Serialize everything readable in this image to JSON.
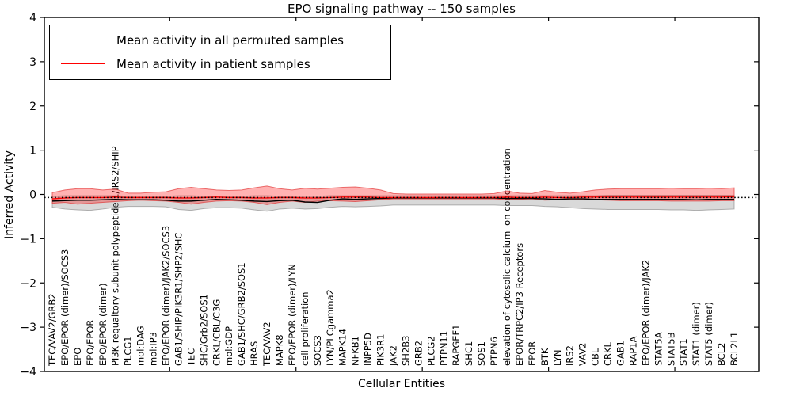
{
  "figure": {
    "background": "#ffffff"
  },
  "legend": {
    "position": "upper left",
    "items": [
      {
        "label": "Mean activity in all permuted samples",
        "color": "#000000"
      },
      {
        "label": "Mean activity in patient samples",
        "color": "#ff0000"
      }
    ]
  },
  "chart_data": {
    "type": "line",
    "title": "EPO signaling pathway -- 150 samples",
    "xlabel": "Cellular Entities",
    "ylabel": "Inferred Activity",
    "ylim": [
      -4,
      4
    ],
    "y_tick_labels": [
      "4",
      "3",
      "2",
      "1",
      "0",
      "−1",
      "−2",
      "−3",
      "−4"
    ],
    "y_tick_values": [
      4,
      3,
      2,
      1,
      0,
      -1,
      -2,
      -3,
      -4
    ],
    "grid": false,
    "legend_position": "upper left",
    "x_tick_label_rotation": 90,
    "dotted_reference_y": -0.07,
    "reference_line_color": "#000000",
    "categories": [
      "TEC/VAV2/GRB2",
      "EPO/EPOR (dimer)/SOCS3",
      "EPO",
      "EPO/EPOR",
      "EPO/EPOR (dimer)",
      "PI3K regualtory subunit polypeptide 1/IRS2/SHIP",
      "PLCG1",
      "mol:DAG",
      "mol:IP3",
      "EPO/EPOR (dimer)/JAK2/SOCS3",
      "GAB1/SHIP/PIK3R1/SHP2/SHC",
      "TEC",
      "SHC/Grb2/SOS1",
      "CRKL/CBL/C3G",
      "mol:GDP",
      "GAB1/SHC/GRB2/SOS1",
      "HRAS",
      "TEC/VAV2",
      "MAPK8",
      "EPO/EPOR (dimer)/LYN",
      "cell proliferation",
      "SOCS3",
      "LYN/PLCgamma2",
      "MAPK14",
      "NFKB1",
      "INPP5D",
      "PIK3R1",
      "JAK2",
      "SH2B3",
      "GRB2",
      "PLCG2",
      "PTPN11",
      "RAPGEF1",
      "SHC1",
      "SOS1",
      "PTPN6",
      "elevation of cytosolic calcium ion concentration",
      "EPOR/TRPC2/IP3 Receptors",
      "EPOR",
      "BTK",
      "LYN",
      "IRS2",
      "VAV2",
      "CBL",
      "CRKL",
      "GAB1",
      "RAP1A",
      "EPO/EPOR (dimer)/JAK2",
      "STAT5A",
      "STAT5B",
      "STAT1",
      "STAT1 (dimer)",
      "STAT5 (dimer)",
      "BCL2",
      "BCL2L1"
    ],
    "series": [
      {
        "name": "Mean activity in all permuted samples",
        "color": "#000000",
        "band_fill": "rgba(120,120,120,0.28)",
        "band_edge": "rgba(120,120,120,0.55)",
        "values": [
          -0.15,
          -0.14,
          -0.13,
          -0.13,
          -0.12,
          -0.11,
          -0.12,
          -0.12,
          -0.12,
          -0.13,
          -0.15,
          -0.15,
          -0.13,
          -0.11,
          -0.12,
          -0.13,
          -0.15,
          -0.16,
          -0.14,
          -0.13,
          -0.17,
          -0.18,
          -0.13,
          -0.1,
          -0.11,
          -0.1,
          -0.09,
          -0.08,
          -0.08,
          -0.08,
          -0.08,
          -0.08,
          -0.08,
          -0.08,
          -0.08,
          -0.08,
          -0.09,
          -0.09,
          -0.09,
          -0.1,
          -0.11,
          -0.1,
          -0.1,
          -0.11,
          -0.11,
          -0.11,
          -0.11,
          -0.11,
          -0.11,
          -0.11,
          -0.11,
          -0.12,
          -0.11,
          -0.11,
          -0.11
        ],
        "band_upper": [
          -0.04,
          -0.03,
          -0.03,
          -0.03,
          -0.03,
          -0.03,
          -0.04,
          -0.04,
          -0.04,
          -0.04,
          -0.03,
          -0.03,
          -0.04,
          -0.04,
          -0.04,
          -0.04,
          -0.03,
          -0.03,
          -0.04,
          -0.04,
          -0.04,
          -0.04,
          -0.03,
          -0.03,
          -0.03,
          -0.03,
          -0.03,
          -0.03,
          -0.03,
          -0.03,
          -0.03,
          -0.03,
          -0.03,
          -0.03,
          -0.03,
          -0.03,
          -0.03,
          -0.03,
          -0.03,
          -0.03,
          -0.03,
          -0.03,
          -0.03,
          -0.03,
          -0.02,
          -0.02,
          -0.02,
          -0.02,
          -0.02,
          -0.02,
          -0.02,
          -0.02,
          -0.02,
          -0.02,
          -0.02
        ],
        "band_lower": [
          -0.29,
          -0.33,
          -0.35,
          -0.36,
          -0.33,
          -0.29,
          -0.27,
          -0.27,
          -0.27,
          -0.28,
          -0.34,
          -0.36,
          -0.32,
          -0.3,
          -0.3,
          -0.31,
          -0.35,
          -0.38,
          -0.33,
          -0.31,
          -0.33,
          -0.32,
          -0.29,
          -0.27,
          -0.28,
          -0.27,
          -0.26,
          -0.24,
          -0.24,
          -0.24,
          -0.24,
          -0.24,
          -0.24,
          -0.24,
          -0.24,
          -0.24,
          -0.25,
          -0.25,
          -0.25,
          -0.27,
          -0.28,
          -0.3,
          -0.32,
          -0.33,
          -0.34,
          -0.34,
          -0.34,
          -0.34,
          -0.34,
          -0.35,
          -0.35,
          -0.36,
          -0.35,
          -0.34,
          -0.33
        ]
      },
      {
        "name": "Mean activity in patient samples",
        "color": "#ff0000",
        "band_fill": "rgba(255,0,0,0.30)",
        "band_edge": "rgba(225,45,45,0.65)",
        "values": [
          -0.1,
          -0.08,
          -0.07,
          -0.07,
          -0.07,
          -0.06,
          -0.07,
          -0.07,
          -0.07,
          -0.07,
          -0.08,
          -0.08,
          -0.07,
          -0.06,
          -0.07,
          -0.07,
          -0.08,
          -0.08,
          -0.07,
          -0.07,
          -0.08,
          -0.08,
          -0.07,
          -0.06,
          -0.06,
          -0.06,
          -0.07,
          -0.07,
          -0.07,
          -0.07,
          -0.07,
          -0.07,
          -0.07,
          -0.07,
          -0.07,
          -0.07,
          -0.06,
          -0.07,
          -0.07,
          -0.06,
          -0.07,
          -0.07,
          -0.06,
          -0.06,
          -0.06,
          -0.06,
          -0.06,
          -0.06,
          -0.06,
          -0.06,
          -0.06,
          -0.06,
          -0.06,
          -0.06,
          -0.05
        ],
        "band_upper": [
          0.04,
          0.1,
          0.13,
          0.13,
          0.1,
          0.12,
          0.03,
          0.03,
          0.05,
          0.06,
          0.13,
          0.16,
          0.13,
          0.1,
          0.09,
          0.1,
          0.15,
          0.19,
          0.13,
          0.1,
          0.14,
          0.12,
          0.14,
          0.16,
          0.17,
          0.14,
          0.1,
          0.02,
          0.01,
          0.01,
          0.01,
          0.01,
          0.01,
          0.01,
          0.01,
          0.02,
          0.08,
          0.03,
          0.02,
          0.09,
          0.05,
          0.03,
          0.06,
          0.1,
          0.12,
          0.13,
          0.13,
          0.13,
          0.13,
          0.14,
          0.13,
          0.13,
          0.14,
          0.13,
          0.15
        ],
        "band_lower": [
          -0.2,
          -0.18,
          -0.22,
          -0.2,
          -0.18,
          -0.16,
          -0.14,
          -0.13,
          -0.14,
          -0.15,
          -0.18,
          -0.22,
          -0.18,
          -0.15,
          -0.14,
          -0.15,
          -0.18,
          -0.23,
          -0.18,
          -0.15,
          -0.18,
          -0.15,
          -0.14,
          -0.15,
          -0.16,
          -0.14,
          -0.12,
          -0.1,
          -0.1,
          -0.1,
          -0.1,
          -0.1,
          -0.1,
          -0.1,
          -0.1,
          -0.1,
          -0.12,
          -0.11,
          -0.1,
          -0.13,
          -0.12,
          -0.11,
          -0.11,
          -0.12,
          -0.13,
          -0.14,
          -0.14,
          -0.14,
          -0.14,
          -0.15,
          -0.15,
          -0.15,
          -0.15,
          -0.14,
          -0.14
        ]
      }
    ]
  }
}
